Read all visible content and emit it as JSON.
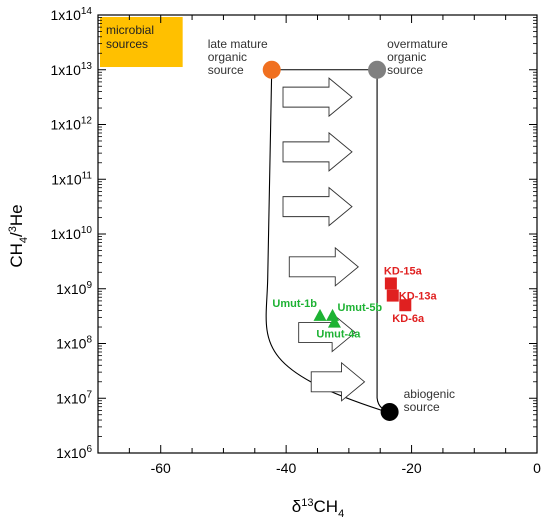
{
  "chart_data": {
    "type": "scatter",
    "title": "",
    "xlabel": "δ13CH4",
    "ylabel": "CH4/3He",
    "xlim": [
      -70,
      0
    ],
    "ylim_log10": [
      6,
      14
    ],
    "yscale": "log",
    "x_ticks": [
      {
        "value": -60,
        "label": "-60"
      },
      {
        "value": -40,
        "label": "-40"
      },
      {
        "value": -20,
        "label": "-20"
      },
      {
        "value": 0,
        "label": "0"
      }
    ],
    "y_ticks": [
      {
        "exp": 6,
        "label": "1x10",
        "sup": "6"
      },
      {
        "exp": 7,
        "label": "1x10",
        "sup": "7"
      },
      {
        "exp": 8,
        "label": "1x10",
        "sup": "8"
      },
      {
        "exp": 9,
        "label": "1x10",
        "sup": "9"
      },
      {
        "exp": 10,
        "label": "1x10",
        "sup": "10"
      },
      {
        "exp": 11,
        "label": "1x10",
        "sup": "11"
      },
      {
        "exp": 12,
        "label": "1x10",
        "sup": "12"
      },
      {
        "exp": 13,
        "label": "1x10",
        "sup": "13"
      },
      {
        "exp": 14,
        "label": "1x10",
        "sup": "14"
      }
    ],
    "microbial_box": {
      "x": [
        -70,
        -56.5
      ],
      "y_log10": [
        13.05,
        14
      ],
      "color": "#FFC000",
      "label_lines": [
        "microbial",
        "sources"
      ]
    },
    "end_members": [
      {
        "name": "late mature organic source",
        "label_lines": [
          "late mature",
          "organic",
          "source"
        ],
        "x": -42.3,
        "y_log10": 13.0,
        "color": "#F07020"
      },
      {
        "name": "overmature organic source",
        "label_lines": [
          "overmature",
          "organic",
          "source"
        ],
        "x": -25.5,
        "y_log10": 13.0,
        "color": "#808080"
      },
      {
        "name": "abiogenic source",
        "label_lines": [
          "abiogenic",
          "source"
        ],
        "x": -23.5,
        "y_log10": 6.75,
        "color": "#000000"
      }
    ],
    "arrows": [
      {
        "x_start": -40.5,
        "x_end": -29.5,
        "y_log10": 12.5
      },
      {
        "x_start": -40.5,
        "x_end": -29.5,
        "y_log10": 11.5
      },
      {
        "x_start": -40.5,
        "x_end": -29.5,
        "y_log10": 10.5
      },
      {
        "x_start": -39.5,
        "x_end": -28.5,
        "y_log10": 9.4
      },
      {
        "x_start": -38.0,
        "x_end": -29.0,
        "y_log10": 8.2
      },
      {
        "x_start": -36.0,
        "x_end": -27.5,
        "y_log10": 7.3
      }
    ],
    "series": [
      {
        "name": "KD",
        "marker": "square",
        "color": "#E02020",
        "points": [
          {
            "label": "KD-15a",
            "x": -23.3,
            "y": 1250000000.0
          },
          {
            "label": "KD-13a",
            "x": -23.0,
            "y": 750000000.0
          },
          {
            "label": "KD-6a",
            "x": -21.0,
            "y": 500000000.0
          }
        ]
      },
      {
        "name": "Umut",
        "marker": "triangle",
        "color": "#1DB233",
        "points": [
          {
            "label": "Umut-1b",
            "x": -34.6,
            "y": 320000000.0
          },
          {
            "label": "Umut-5b",
            "x": -32.6,
            "y": 320000000.0
          },
          {
            "label": "Umut-4a",
            "x": -32.3,
            "y": 240000000.0
          }
        ]
      }
    ]
  }
}
